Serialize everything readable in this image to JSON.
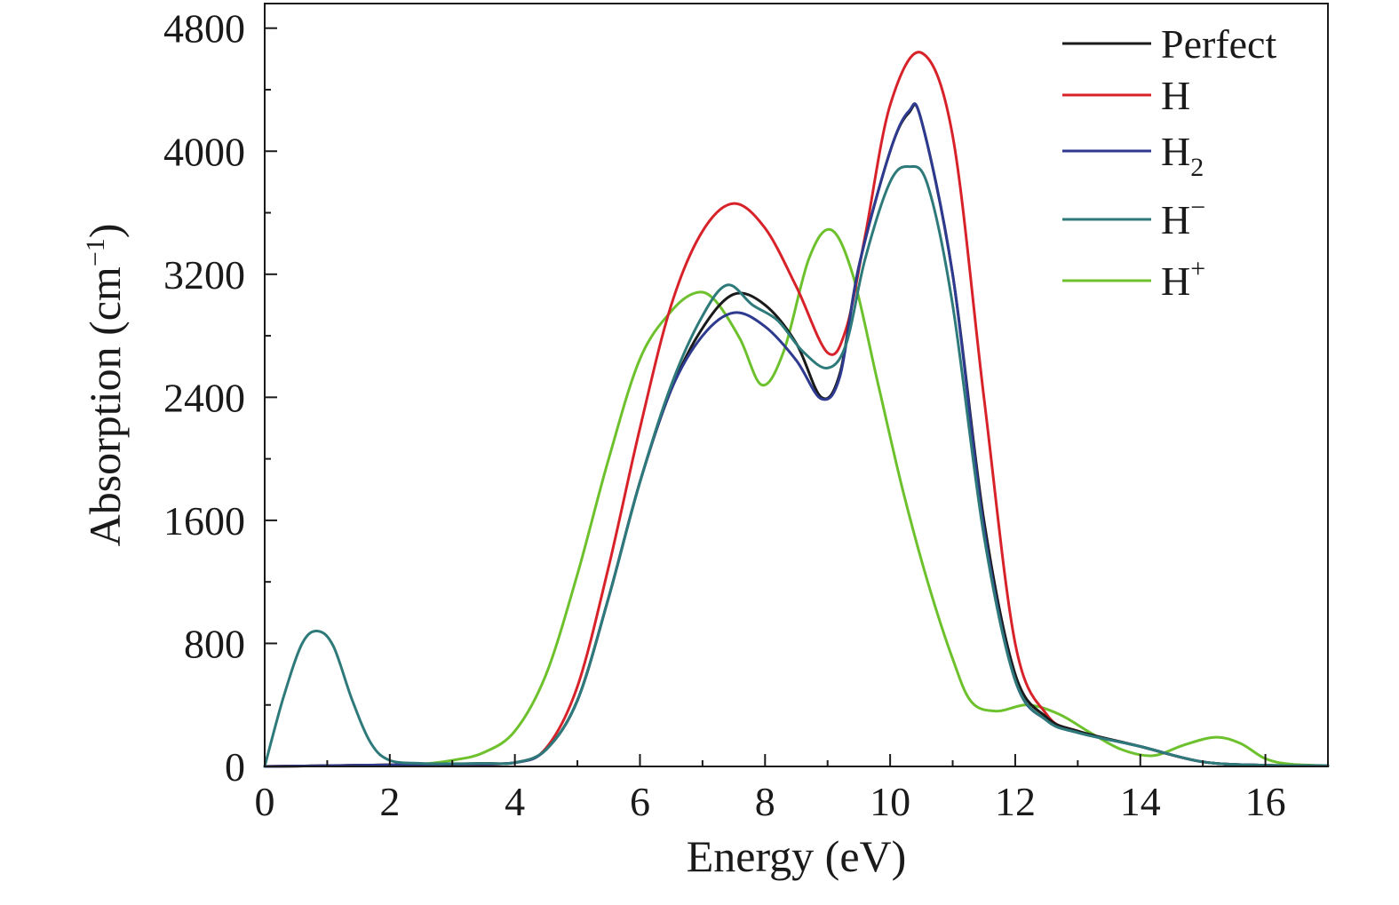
{
  "chart_data": {
    "type": "line",
    "title": "",
    "xlabel": "Energy (eV)",
    "ylabel": {
      "main": "Absorption (cm",
      "sup": "−1",
      "close": ")"
    },
    "xlim": [
      0,
      17
    ],
    "ylim": [
      0,
      4960
    ],
    "xticks": [
      0,
      2,
      4,
      6,
      8,
      10,
      12,
      14,
      16
    ],
    "yticks": [
      0,
      800,
      1600,
      2400,
      3200,
      4000,
      4800
    ],
    "grid": false,
    "legend_position": "top-right",
    "series": [
      {
        "name": "Perfect",
        "base": "Perfect",
        "sub": "",
        "sup": "",
        "color": "#1a1a1a",
        "points": [
          [
            0,
            0
          ],
          [
            1,
            5
          ],
          [
            2,
            10
          ],
          [
            2.5,
            10
          ],
          [
            3,
            15
          ],
          [
            3.5,
            20
          ],
          [
            4,
            25
          ],
          [
            4.5,
            110
          ],
          [
            5,
            430
          ],
          [
            5.5,
            1100
          ],
          [
            6,
            1850
          ],
          [
            6.5,
            2450
          ],
          [
            7,
            2850
          ],
          [
            7.5,
            3070
          ],
          [
            8,
            3000
          ],
          [
            8.5,
            2750
          ],
          [
            8.9,
            2400
          ],
          [
            9.2,
            2560
          ],
          [
            9.5,
            3250
          ],
          [
            10,
            4000
          ],
          [
            10.3,
            4250
          ],
          [
            10.5,
            4200
          ],
          [
            11,
            3200
          ],
          [
            11.5,
            1600
          ],
          [
            12,
            600
          ],
          [
            12.5,
            320
          ],
          [
            13,
            230
          ],
          [
            14,
            130
          ],
          [
            15,
            30
          ],
          [
            16,
            8
          ],
          [
            17,
            5
          ]
        ]
      },
      {
        "name": "H",
        "base": "H",
        "sub": "",
        "sup": "",
        "color": "#d8222a",
        "points": [
          [
            0,
            0
          ],
          [
            1,
            5
          ],
          [
            2,
            10
          ],
          [
            3,
            15
          ],
          [
            4,
            25
          ],
          [
            4.5,
            120
          ],
          [
            5,
            520
          ],
          [
            5.5,
            1300
          ],
          [
            6,
            2200
          ],
          [
            6.5,
            3000
          ],
          [
            7,
            3480
          ],
          [
            7.5,
            3660
          ],
          [
            8,
            3500
          ],
          [
            8.5,
            3120
          ],
          [
            9,
            2690
          ],
          [
            9.3,
            2850
          ],
          [
            9.6,
            3450
          ],
          [
            10,
            4300
          ],
          [
            10.5,
            4640
          ],
          [
            11,
            4100
          ],
          [
            11.5,
            2400
          ],
          [
            12,
            800
          ],
          [
            12.5,
            340
          ],
          [
            13,
            230
          ],
          [
            14,
            130
          ],
          [
            15,
            30
          ],
          [
            16,
            8
          ],
          [
            17,
            5
          ]
        ]
      },
      {
        "name": "H2",
        "base": "H",
        "sub": "2",
        "sup": "",
        "color": "#2e3a8f",
        "points": [
          [
            0,
            0
          ],
          [
            1,
            5
          ],
          [
            2,
            10
          ],
          [
            3,
            15
          ],
          [
            4,
            25
          ],
          [
            4.5,
            110
          ],
          [
            5,
            430
          ],
          [
            5.5,
            1100
          ],
          [
            6,
            1850
          ],
          [
            6.5,
            2450
          ],
          [
            7,
            2800
          ],
          [
            7.5,
            2950
          ],
          [
            8,
            2860
          ],
          [
            8.5,
            2640
          ],
          [
            8.9,
            2390
          ],
          [
            9.2,
            2540
          ],
          [
            9.5,
            3250
          ],
          [
            10,
            4000
          ],
          [
            10.3,
            4260
          ],
          [
            10.5,
            4200
          ],
          [
            11,
            3200
          ],
          [
            11.5,
            1550
          ],
          [
            12,
            560
          ],
          [
            12.5,
            300
          ],
          [
            13,
            220
          ],
          [
            14,
            130
          ],
          [
            15,
            30
          ],
          [
            16,
            8
          ],
          [
            17,
            5
          ]
        ]
      },
      {
        "name": "H-",
        "base": "H",
        "sub": "",
        "sup": "−",
        "color": "#2e7a7a",
        "points": [
          [
            0,
            0
          ],
          [
            0.3,
            450
          ],
          [
            0.6,
            800
          ],
          [
            0.85,
            880
          ],
          [
            1.1,
            780
          ],
          [
            1.4,
            430
          ],
          [
            1.7,
            150
          ],
          [
            2,
            40
          ],
          [
            2.5,
            20
          ],
          [
            3,
            18
          ],
          [
            3.5,
            20
          ],
          [
            4,
            25
          ],
          [
            4.5,
            110
          ],
          [
            5,
            430
          ],
          [
            5.5,
            1100
          ],
          [
            6,
            1850
          ],
          [
            6.5,
            2480
          ],
          [
            7,
            2930
          ],
          [
            7.4,
            3130
          ],
          [
            7.8,
            3000
          ],
          [
            8.2,
            2900
          ],
          [
            8.6,
            2700
          ],
          [
            9,
            2590
          ],
          [
            9.3,
            2750
          ],
          [
            9.6,
            3300
          ],
          [
            10,
            3800
          ],
          [
            10.3,
            3900
          ],
          [
            10.6,
            3780
          ],
          [
            11,
            3000
          ],
          [
            11.5,
            1500
          ],
          [
            12,
            560
          ],
          [
            12.5,
            300
          ],
          [
            13,
            220
          ],
          [
            14,
            130
          ],
          [
            15,
            30
          ],
          [
            16,
            8
          ],
          [
            17,
            5
          ]
        ]
      },
      {
        "name": "H+",
        "base": "H",
        "sub": "",
        "sup": "+",
        "color": "#6cc12c",
        "points": [
          [
            0,
            0
          ],
          [
            1,
            5
          ],
          [
            2,
            10
          ],
          [
            2.5,
            15
          ],
          [
            3,
            40
          ],
          [
            3.5,
            90
          ],
          [
            4,
            230
          ],
          [
            4.5,
            600
          ],
          [
            5,
            1250
          ],
          [
            5.5,
            2000
          ],
          [
            6,
            2650
          ],
          [
            6.5,
            2960
          ],
          [
            6.9,
            3080
          ],
          [
            7.2,
            3030
          ],
          [
            7.6,
            2780
          ],
          [
            7.95,
            2480
          ],
          [
            8.3,
            2700
          ],
          [
            8.7,
            3300
          ],
          [
            9.05,
            3490
          ],
          [
            9.4,
            3200
          ],
          [
            9.8,
            2500
          ],
          [
            10.2,
            1800
          ],
          [
            10.6,
            1200
          ],
          [
            11,
            700
          ],
          [
            11.3,
            420
          ],
          [
            11.7,
            360
          ],
          [
            12.2,
            400
          ],
          [
            12.7,
            340
          ],
          [
            13.2,
            220
          ],
          [
            13.7,
            110
          ],
          [
            14.2,
            70
          ],
          [
            14.7,
            140
          ],
          [
            15.2,
            190
          ],
          [
            15.6,
            150
          ],
          [
            16,
            50
          ],
          [
            16.4,
            15
          ],
          [
            17,
            5
          ]
        ]
      }
    ]
  }
}
